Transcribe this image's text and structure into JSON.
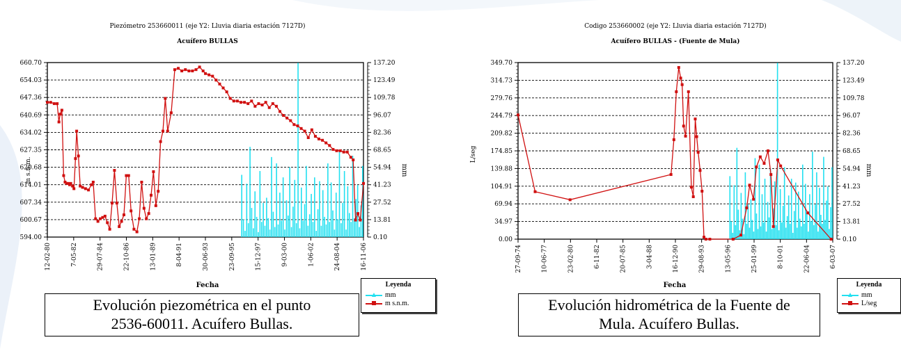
{
  "colors": {
    "piezo": "#d01010",
    "rain": "#22e0f0",
    "axis": "#000000",
    "grid": "#000000"
  },
  "charts": [
    {
      "title_line1": "Piezómetro 253660011 (eje Y2: Lluvia diaria estación 7127D)",
      "title_line2": "Acuífero BULLAS",
      "ylabel": "m s.n.m.",
      "y2label": "mm",
      "xlabel": "Fecha",
      "y_ticks": [
        "660.70",
        "654.03",
        "647.36",
        "640.69",
        "634.02",
        "627.35",
        "620.68",
        "614.01",
        "607.34",
        "600.67",
        "594.00"
      ],
      "y2_ticks": [
        "137.20",
        "123.49",
        "109.78",
        "96.07",
        "82.36",
        "68.65",
        "54.94",
        "41.23",
        "27.52",
        "13.81",
        "0.10"
      ],
      "x_ticks": [
        "12-02-80",
        "7-05-82",
        "29-07-84",
        "22-10-86",
        "13-01-89",
        "8-04-91",
        "30-06-93",
        "23-09-95",
        "15-12-97",
        "9-03-00",
        "1-06-02",
        "24-08-04",
        "16-11-06"
      ],
      "legend_title": "Leyenda",
      "legend_items": [
        "mm",
        "m s.n.m."
      ],
      "caption_line1": "Evolución piezométrica en el punto",
      "caption_line2": "2536-60011. Acuífero Bullas."
    },
    {
      "title_line1": "Codigo 253660002 (eje Y2: Lluvia diaria estación 7127D)",
      "title_line2": "Acuífero BULLAS -  (Fuente de Mula)",
      "ylabel": "L/seg",
      "y2label": "mm",
      "xlabel": "Fecha",
      "y_ticks": [
        "349.70",
        "314.73",
        "279.76",
        "244.79",
        "209.82",
        "174.85",
        "139.88",
        "104.91",
        "69.94",
        "34.97",
        "0.00"
      ],
      "y2_ticks": [
        "137.20",
        "123.49",
        "109.78",
        "96.07",
        "82.36",
        "68.65",
        "54.94",
        "41.23",
        "27.52",
        "13.81",
        "0.10"
      ],
      "x_ticks": [
        "27-09-74",
        "10-06-77",
        "23-02-80",
        "6-11-82",
        "20-07-85",
        "3-04-88",
        "16-12-90",
        "29-08-93",
        "13-05-96",
        "25-01-99",
        "8-10-01",
        "22-06-04",
        "6-03-07"
      ],
      "legend_title": "Leyenda",
      "legend_items": [
        "mm",
        "L/seg"
      ],
      "caption_line1": "Evolución hidrométrica de la Fuente de",
      "caption_line2": "Mula. Acuífero Bullas."
    }
  ],
  "chart_data": [
    {
      "type": "line",
      "title": "Piezómetro 253660011 (eje Y2: Lluvia diaria estación 7127D) Acuífero BULLAS",
      "xlabel": "Fecha",
      "ylabel": "m s.n.m.",
      "y2label": "mm",
      "ylim": [
        594.0,
        660.7
      ],
      "y2lim": [
        0.1,
        137.2
      ],
      "x_range_years": [
        1980.12,
        2006.87
      ],
      "grid": true,
      "legend": "bottom-right",
      "series": [
        {
          "name": "m s.n.m.",
          "axis": "y",
          "x": [
            1980.12,
            1980.4,
            1980.7,
            1980.95,
            1981.1,
            1981.2,
            1981.35,
            1981.5,
            1981.62,
            1981.75,
            1981.88,
            1982.0,
            1982.1,
            1982.25,
            1982.37,
            1982.5,
            1982.6,
            1982.75,
            1982.9,
            1983.1,
            1983.35,
            1983.6,
            1983.85,
            1984.0,
            1984.2,
            1984.4,
            1984.6,
            1984.8,
            1985.0,
            1985.2,
            1985.4,
            1985.6,
            1985.8,
            1986.0,
            1986.2,
            1986.4,
            1986.6,
            1986.8,
            1987.0,
            1987.2,
            1987.45,
            1987.7,
            1987.9,
            1988.1,
            1988.3,
            1988.5,
            1988.7,
            1988.9,
            1989.1,
            1989.3,
            1989.5,
            1989.7,
            1989.9,
            1990.1,
            1990.3,
            1990.6,
            1990.9,
            1991.2,
            1991.5,
            1991.8,
            1992.1,
            1992.4,
            1992.7,
            1993.0,
            1993.3,
            1993.5,
            1993.8,
            1994.1,
            1994.4,
            1994.7,
            1995.0,
            1995.3,
            1995.6,
            1995.9,
            1996.2,
            1996.5,
            1996.8,
            1997.1,
            1997.4,
            1997.7,
            1998.0,
            1998.3,
            1998.6,
            1998.9,
            1999.2,
            1999.5,
            1999.8,
            2000.1,
            2000.4,
            2000.7,
            2001.0,
            2001.3,
            2001.6,
            2001.9,
            2002.2,
            2002.5,
            2002.8,
            2003.1,
            2003.4,
            2003.7,
            2004.0,
            2004.3,
            2004.6,
            2004.9,
            2005.2,
            2005.5,
            2005.8,
            2006.0,
            2006.2,
            2006.4,
            2006.6,
            2006.87
          ],
          "values": [
            645.5,
            645.5,
            645.0,
            645.0,
            638.0,
            641.0,
            642.5,
            617.5,
            615.0,
            614.5,
            614.5,
            614.0,
            614.5,
            613.5,
            612.5,
            624.0,
            634.5,
            625.0,
            613.5,
            613.0,
            612.5,
            612.0,
            614.0,
            615.0,
            601.0,
            600.0,
            601.0,
            601.5,
            602.0,
            599.5,
            597.0,
            607.0,
            619.5,
            607.0,
            598.0,
            600.0,
            602.5,
            617.5,
            617.5,
            604.0,
            597.0,
            596.0,
            601.0,
            615.0,
            605.0,
            601.0,
            603.0,
            610.0,
            619.0,
            606.0,
            611.5,
            630.5,
            634.5,
            647.0,
            634.5,
            641.5,
            658.0,
            658.5,
            657.5,
            658.0,
            657.5,
            657.5,
            658.0,
            659.0,
            657.5,
            656.5,
            656.0,
            655.5,
            654.0,
            652.5,
            651.0,
            649.5,
            647.0,
            646.0,
            646.0,
            645.5,
            645.5,
            645.0,
            646.0,
            644.0,
            645.0,
            644.5,
            645.5,
            643.5,
            645.0,
            644.0,
            642.0,
            640.5,
            639.5,
            638.5,
            637.0,
            636.5,
            635.5,
            634.5,
            632.0,
            635.0,
            632.5,
            631.5,
            631.0,
            630.0,
            629.0,
            627.5,
            627.0,
            627.0,
            626.5,
            626.5,
            624.5,
            623.5,
            600.5,
            603.0,
            600.5,
            614.5
          ]
        },
        {
          "name": "mm",
          "axis": "y2",
          "x_range_years": [
            1996.5,
            2006.87
          ],
          "values": [
            49,
            14,
            5,
            42,
            11,
            71,
            23,
            7,
            36,
            16,
            4,
            52,
            12,
            27,
            9,
            31,
            15,
            6,
            63,
            20,
            8,
            58,
            10,
            35,
            13,
            47,
            6,
            29,
            17,
            55,
            8,
            24,
            45,
            11,
            137,
            7,
            39,
            13,
            26,
            56,
            9,
            18,
            34,
            12,
            47,
            5,
            22,
            44,
            9,
            37,
            16,
            10,
            58,
            12,
            43,
            21,
            6,
            35,
            14,
            68,
            11,
            27,
            52,
            6,
            40,
            19,
            12,
            64,
            15,
            30,
            41,
            8,
            25,
            56
          ]
        }
      ]
    },
    {
      "type": "line",
      "title": "Codigo 253660002 (eje Y2: Lluvia diaria estación 7127D) Acuífero BULLAS -  (Fuente de Mula)",
      "xlabel": "Fecha",
      "ylabel": "L/seg",
      "y2label": "mm",
      "ylim": [
        0.0,
        349.7
      ],
      "y2lim": [
        0.1,
        137.2
      ],
      "x_range_years": [
        1974.74,
        2007.17
      ],
      "grid": true,
      "legend": "bottom-right",
      "series": [
        {
          "name": "L/seg",
          "axis": "y",
          "x": [
            1974.74,
            1976.5,
            1980.1,
            1990.5,
            1990.8,
            1991.05,
            1991.3,
            1991.5,
            1991.65,
            1991.8,
            1992.0,
            1992.3,
            1992.6,
            1992.8,
            1993.0,
            1993.15,
            1993.3,
            1993.5,
            1993.7,
            1993.9,
            1994.1,
            1994.5,
            1996.9,
            1997.7,
            1998.3,
            1998.6,
            1999.0,
            1999.3,
            1999.7,
            2000.1,
            2000.5,
            2000.8,
            2001.05,
            2001.5,
            2001.8,
            2004.6,
            2007.0
          ],
          "values": [
            246.0,
            94.0,
            78.0,
            128.0,
            197.0,
            292.0,
            340.0,
            319.0,
            306.0,
            224.0,
            204.0,
            292.0,
            103.0,
            84.0,
            238.0,
            203.0,
            172.0,
            136.0,
            95.0,
            4.0,
            0.0,
            0.0,
            0.0,
            8.0,
            62.0,
            107.0,
            79.0,
            143.0,
            163.0,
            150.0,
            175.0,
            128.0,
            25.0,
            157.0,
            145.0,
            52.0,
            0.0
          ]
        },
        {
          "name": "mm",
          "axis": "y2",
          "x_range_years": [
            1996.5,
            2007.17
          ],
          "values": [
            49,
            14,
            5,
            42,
            11,
            71,
            23,
            7,
            36,
            16,
            4,
            52,
            12,
            27,
            9,
            31,
            15,
            6,
            63,
            20,
            8,
            58,
            10,
            35,
            13,
            47,
            6,
            29,
            17,
            55,
            8,
            24,
            45,
            11,
            137,
            7,
            39,
            13,
            26,
            56,
            9,
            18,
            34,
            12,
            47,
            5,
            22,
            44,
            9,
            37,
            16,
            10,
            58,
            12,
            43,
            21,
            6,
            35,
            14,
            68,
            11,
            27,
            52,
            6,
            40,
            19,
            12,
            64,
            15,
            30,
            41,
            8,
            25,
            56
          ]
        }
      ]
    }
  ]
}
